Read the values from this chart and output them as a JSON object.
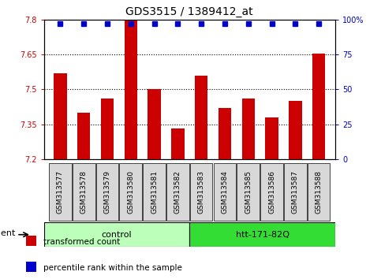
{
  "title": "GDS3515 / 1389412_at",
  "samples": [
    "GSM313577",
    "GSM313578",
    "GSM313579",
    "GSM313580",
    "GSM313581",
    "GSM313582",
    "GSM313583",
    "GSM313584",
    "GSM313585",
    "GSM313586",
    "GSM313587",
    "GSM313588"
  ],
  "bar_values": [
    7.57,
    7.4,
    7.46,
    7.8,
    7.5,
    7.33,
    7.56,
    7.42,
    7.46,
    7.38,
    7.45,
    7.655
  ],
  "percentile_values": [
    97,
    97,
    97,
    97,
    97,
    97,
    97,
    97,
    97,
    97,
    97,
    97
  ],
  "ylim_left": [
    7.2,
    7.8
  ],
  "ylim_right": [
    0,
    100
  ],
  "yticks_left": [
    7.2,
    7.35,
    7.5,
    7.65,
    7.8
  ],
  "ytick_labels_left": [
    "7.2",
    "7.35",
    "7.5",
    "7.65",
    "7.8"
  ],
  "yticks_right": [
    0,
    25,
    50,
    75,
    100
  ],
  "ytick_labels_right": [
    "0",
    "25",
    "50",
    "75",
    "100%"
  ],
  "bar_color": "#cc0000",
  "dot_color": "#0000cc",
  "bar_bottom": 7.2,
  "groups": [
    {
      "label": "control",
      "start": 0,
      "end": 5,
      "color": "#bbffbb"
    },
    {
      "label": "htt-171-82Q",
      "start": 6,
      "end": 11,
      "color": "#33dd33"
    }
  ],
  "agent_label": "agent",
  "legend_bar_label": "transformed count",
  "legend_dot_label": "percentile rank within the sample",
  "background_color": "#ffffff",
  "plot_bg_color": "#ffffff",
  "title_fontsize": 10,
  "tick_fontsize": 7,
  "label_fontsize": 8,
  "group_fontsize": 8
}
